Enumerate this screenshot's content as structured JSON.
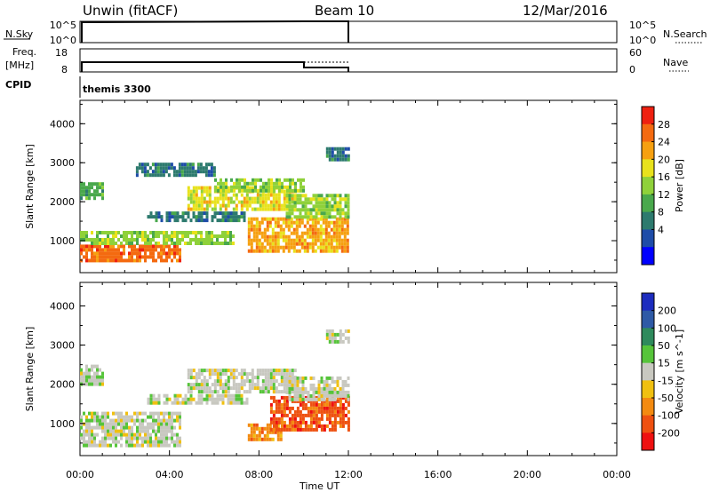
{
  "header": {
    "station": "Unwin (fitACF)",
    "beam": "Beam 10",
    "date": "12/Mar/2016"
  },
  "panels": {
    "nsky_label": "N.Sky",
    "nsky_ticks": [
      "10^5",
      "10^0"
    ],
    "nsearch_label": "N.Search",
    "nsearch_ticks": [
      "10^5",
      "10^0"
    ],
    "freq_label": "Freq.",
    "freq_unit": "[MHz]",
    "freq_ticks": [
      "18",
      "8"
    ],
    "nave_label": "Nave",
    "nave_ticks": [
      "60",
      "0"
    ],
    "cpid_label": "CPID",
    "cpid_value": "themis 3300"
  },
  "colors": {
    "power_scale": [
      "#0000ff",
      "#1e4ca8",
      "#2d7a6e",
      "#49a84c",
      "#8fd13a",
      "#e8e21c",
      "#f6a010",
      "#f46a10",
      "#ee2010"
    ],
    "velocity_scale": [
      "#1c2cbe",
      "#2e5aa6",
      "#2e8a5c",
      "#56c43a",
      "#c8c8c0",
      "#f0c010",
      "#f38a10",
      "#ee5010",
      "#ee1010"
    ]
  },
  "chart_data": [
    {
      "type": "heatmap",
      "name": "power",
      "ylabel": "Slant Range [km]",
      "yticks": [
        "1000",
        "2000",
        "3000",
        "4000"
      ],
      "ylim": [
        180,
        4600
      ],
      "xlim": [
        "00:00",
        "24:00"
      ],
      "colorbar_label": "Power [dB]",
      "colorbar_ticks": [
        "4",
        "8",
        "12",
        "16",
        "20",
        "24",
        "28"
      ],
      "colorbar_range": [
        0,
        32
      ],
      "data_extent_hours": [
        0,
        12
      ],
      "regions": [
        {
          "t0": 0.0,
          "t1": 4.5,
          "r0": 450,
          "r1": 900,
          "value": 28
        },
        {
          "t0": 0.0,
          "t1": 6.8,
          "r0": 900,
          "r1": 1250,
          "value": 16
        },
        {
          "t0": 3.0,
          "t1": 7.5,
          "r0": 1500,
          "r1": 1750,
          "value": 8
        },
        {
          "t0": 0.0,
          "t1": 1.0,
          "r0": 2100,
          "r1": 2500,
          "value": 12
        },
        {
          "t0": 4.8,
          "t1": 9.6,
          "r0": 1800,
          "r1": 2400,
          "value": 20
        },
        {
          "t0": 6.0,
          "t1": 10.0,
          "r0": 2300,
          "r1": 2600,
          "value": 14
        },
        {
          "t0": 7.5,
          "t1": 12.0,
          "r0": 700,
          "r1": 1600,
          "value": 24
        },
        {
          "t0": 9.2,
          "t1": 12.0,
          "r0": 1600,
          "r1": 2200,
          "value": 14
        },
        {
          "t0": 11.0,
          "t1": 12.0,
          "r0": 3100,
          "r1": 3400,
          "value": 6
        },
        {
          "t0": 2.5,
          "t1": 6.0,
          "r0": 2700,
          "r1": 3000,
          "value": 6
        }
      ]
    },
    {
      "type": "heatmap",
      "name": "velocity",
      "ylabel": "Slant Range [km]",
      "yticks": [
        "1000",
        "2000",
        "3000",
        "4000"
      ],
      "ylim": [
        180,
        4600
      ],
      "xlim": [
        "00:00",
        "24:00"
      ],
      "colorbar_label": "Velocity [m s^-1]",
      "colorbar_ticks": [
        "200",
        "100",
        "50",
        "15",
        "-15",
        "-50",
        "-100",
        "-200"
      ],
      "data_extent_hours": [
        0,
        12
      ],
      "regions": [
        {
          "t0": 0.0,
          "t1": 4.5,
          "r0": 450,
          "r1": 1300,
          "value": 0
        },
        {
          "t0": 0.0,
          "t1": 1.0,
          "r0": 2000,
          "r1": 2500,
          "value": 0
        },
        {
          "t0": 3.0,
          "t1": 7.5,
          "r0": 1500,
          "r1": 1750,
          "value": 0
        },
        {
          "t0": 4.8,
          "t1": 9.6,
          "r0": 1800,
          "r1": 2400,
          "value": 0
        },
        {
          "t0": 7.5,
          "t1": 9.0,
          "r0": 600,
          "r1": 1000,
          "value": -50
        },
        {
          "t0": 8.5,
          "t1": 12.0,
          "r0": 800,
          "r1": 1700,
          "value": -150
        },
        {
          "t0": 9.2,
          "t1": 12.0,
          "r0": 1600,
          "r1": 2200,
          "value": 0
        },
        {
          "t0": 11.0,
          "t1": 12.0,
          "r0": 3100,
          "r1": 3400,
          "value": 0
        }
      ]
    }
  ],
  "xaxis": {
    "ticks": [
      "00:00",
      "04:00",
      "08:00",
      "12:00",
      "16:00",
      "20:00",
      "00:00"
    ],
    "label": "Time UT"
  }
}
